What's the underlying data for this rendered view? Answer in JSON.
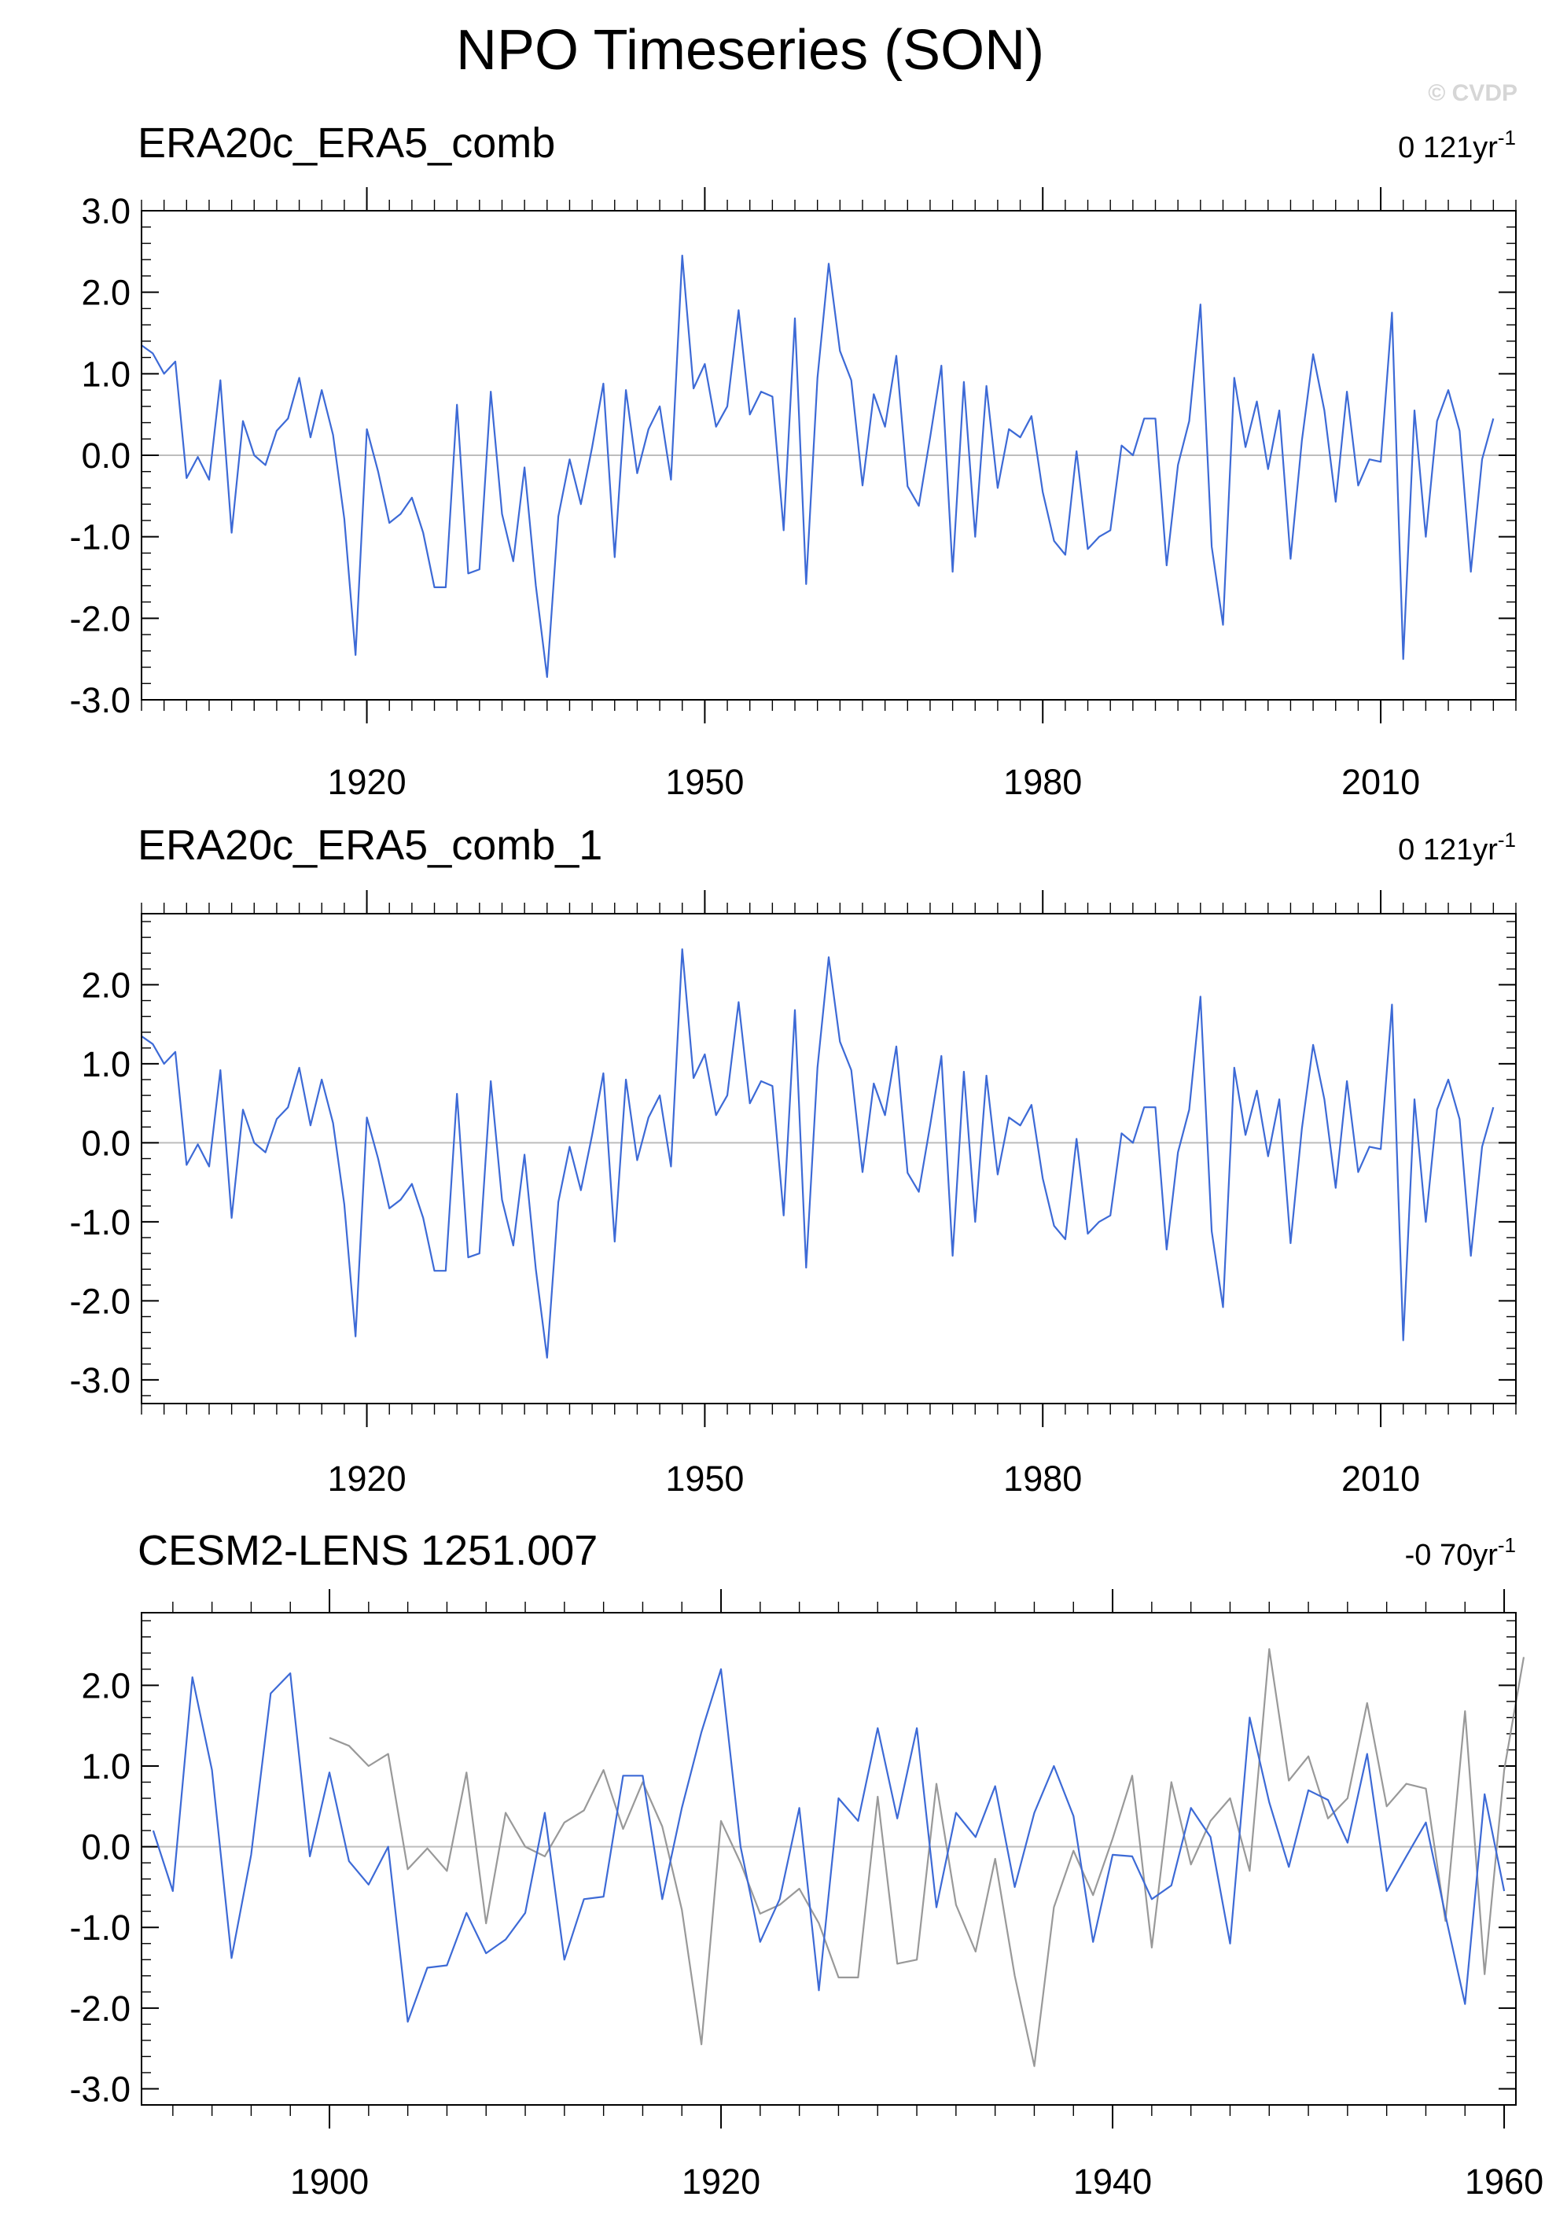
{
  "title": "NPO Timeseries (SON)",
  "credit": "© CVDP",
  "chart_data": [
    {
      "type": "line",
      "title": "ERA20c_ERA5_comb",
      "trend_label": "0 121yr",
      "trend_superscript": "-1",
      "xlim": [
        1900,
        2022
      ],
      "ylim": [
        -3,
        3
      ],
      "x_ticks": [
        1920,
        1950,
        1980,
        2010
      ],
      "y_ticks": [
        "-3.0",
        "-2.0",
        "-1.0",
        "0.0",
        "1.0",
        "2.0",
        "3.0"
      ],
      "series": [
        {
          "color": "#3d6ad6",
          "x_start": 1900,
          "values": [
            1.35,
            1.25,
            1.0,
            1.15,
            -0.28,
            -0.02,
            -0.3,
            0.92,
            -0.95,
            0.42,
            0.0,
            -0.12,
            0.3,
            0.45,
            0.95,
            0.22,
            0.8,
            0.25,
            -0.78,
            -2.45,
            0.32,
            -0.2,
            -0.83,
            -0.72,
            -0.52,
            -0.95,
            -1.62,
            -1.62,
            0.62,
            -1.45,
            -1.4,
            0.78,
            -0.72,
            -1.3,
            -0.15,
            -1.6,
            -2.72,
            -0.75,
            -0.05,
            -0.6,
            0.1,
            0.88,
            -1.25,
            0.8,
            -0.22,
            0.32,
            0.6,
            -0.3,
            2.45,
            0.82,
            1.12,
            0.35,
            0.6,
            1.78,
            0.5,
            0.78,
            0.72,
            -0.92,
            1.68,
            -1.58,
            0.95,
            2.35,
            1.28,
            0.92,
            -0.37,
            0.75,
            0.35,
            1.22,
            -0.38,
            -0.62,
            0.22,
            1.1,
            -1.43,
            0.9,
            -1.0,
            0.85,
            -0.4,
            0.32,
            0.22,
            0.48,
            -0.45,
            -1.05,
            -1.22,
            0.05,
            -1.15,
            -1.0,
            -0.92,
            0.12,
            0.0,
            0.45,
            0.45,
            -1.35,
            -0.12,
            0.42,
            1.85,
            -1.12,
            -2.08,
            0.95,
            0.1,
            0.66,
            -0.17,
            0.55,
            -1.27,
            0.18,
            1.24,
            0.55,
            -0.57,
            0.78,
            -0.37,
            -0.05,
            -0.08,
            1.75,
            -2.5,
            0.55,
            -1.0,
            0.42,
            0.8,
            0.3,
            -1.43,
            -0.05,
            0.45
          ]
        }
      ]
    },
    {
      "type": "line",
      "title": "ERA20c_ERA5_comb_1",
      "trend_label": "0 121yr",
      "trend_superscript": "-1",
      "xlim": [
        1900,
        2022
      ],
      "ylim": [
        -3.3,
        2.9
      ],
      "x_ticks": [
        1920,
        1950,
        1980,
        2010
      ],
      "y_ticks": [
        "-3.0",
        "-2.0",
        "-1.0",
        "0.0",
        "1.0",
        "2.0"
      ],
      "series": [
        {
          "color": "#3d6ad6",
          "x_start": 1900,
          "values": [
            1.35,
            1.25,
            1.0,
            1.15,
            -0.28,
            -0.02,
            -0.3,
            0.92,
            -0.95,
            0.42,
            0.0,
            -0.12,
            0.3,
            0.45,
            0.95,
            0.22,
            0.8,
            0.25,
            -0.78,
            -2.45,
            0.32,
            -0.2,
            -0.83,
            -0.72,
            -0.52,
            -0.95,
            -1.62,
            -1.62,
            0.62,
            -1.45,
            -1.4,
            0.78,
            -0.72,
            -1.3,
            -0.15,
            -1.6,
            -2.72,
            -0.75,
            -0.05,
            -0.6,
            0.1,
            0.88,
            -1.25,
            0.8,
            -0.22,
            0.32,
            0.6,
            -0.3,
            2.45,
            0.82,
            1.12,
            0.35,
            0.6,
            1.78,
            0.5,
            0.78,
            0.72,
            -0.92,
            1.68,
            -1.58,
            0.95,
            2.35,
            1.28,
            0.92,
            -0.37,
            0.75,
            0.35,
            1.22,
            -0.38,
            -0.62,
            0.22,
            1.1,
            -1.43,
            0.9,
            -1.0,
            0.85,
            -0.4,
            0.32,
            0.22,
            0.48,
            -0.45,
            -1.05,
            -1.22,
            0.05,
            -1.15,
            -1.0,
            -0.92,
            0.12,
            0.0,
            0.45,
            0.45,
            -1.35,
            -0.12,
            0.42,
            1.85,
            -1.12,
            -2.08,
            0.95,
            0.1,
            0.66,
            -0.17,
            0.55,
            -1.27,
            0.18,
            1.24,
            0.55,
            -0.57,
            0.78,
            -0.37,
            -0.05,
            -0.08,
            1.75,
            -2.5,
            0.55,
            -1.0,
            0.42,
            0.8,
            0.3,
            -1.43,
            -0.05,
            0.45
          ]
        }
      ]
    },
    {
      "type": "line",
      "title": "CESM2-LENS 1251.007",
      "trend_label": "-0 70yr",
      "trend_superscript": "-1",
      "xlim": [
        1890.4,
        1960.6
      ],
      "ylim": [
        -3.2,
        2.9
      ],
      "x_ticks": [
        1900,
        1920,
        1940,
        1960
      ],
      "y_ticks": [
        "-3.0",
        "-2.0",
        "-1.0",
        "0.0",
        "1.0",
        "2.0"
      ],
      "series": [
        {
          "color": "#999999",
          "x_start": 1900,
          "values": [
            1.35,
            1.25,
            1.0,
            1.15,
            -0.28,
            -0.02,
            -0.3,
            0.92,
            -0.95,
            0.42,
            0.0,
            -0.12,
            0.3,
            0.45,
            0.95,
            0.22,
            0.8,
            0.25,
            -0.78,
            -2.45,
            0.32,
            -0.2,
            -0.83,
            -0.72,
            -0.52,
            -0.95,
            -1.62,
            -1.62,
            0.62,
            -1.45,
            -1.4,
            0.78,
            -0.72,
            -1.3,
            -0.15,
            -1.6,
            -2.72,
            -0.75,
            -0.05,
            -0.6,
            0.1,
            0.88,
            -1.25,
            0.8,
            -0.22,
            0.32,
            0.6,
            -0.3,
            2.45,
            0.82,
            1.12,
            0.35,
            0.6,
            1.78,
            0.5,
            0.78,
            0.72,
            -0.92,
            1.68,
            -1.58,
            0.95,
            2.35
          ]
        },
        {
          "color": "#3d6ad6",
          "x_start": 1891,
          "values": [
            0.2,
            -0.55,
            2.1,
            0.95,
            -1.38,
            -0.1,
            1.9,
            2.15,
            -0.12,
            0.92,
            -0.18,
            -0.47,
            0.0,
            -2.17,
            -1.5,
            -1.47,
            -0.82,
            -1.32,
            -1.15,
            -0.82,
            0.42,
            -1.4,
            -0.65,
            -0.62,
            0.88,
            0.88,
            -0.65,
            0.48,
            1.42,
            2.2,
            0.0,
            -1.18,
            -0.65,
            0.48,
            -1.78,
            0.6,
            0.32,
            1.47,
            0.35,
            1.47,
            -0.75,
            0.42,
            0.12,
            0.75,
            -0.5,
            0.42,
            1.0,
            0.38,
            -1.18,
            -0.1,
            -0.12,
            -0.65,
            -0.48,
            0.48,
            0.12,
            -1.2,
            1.6,
            0.55,
            -0.25,
            0.7,
            0.58,
            0.05,
            1.15,
            -0.55,
            -0.12,
            0.3,
            -0.85,
            -1.95,
            0.65,
            -0.55
          ]
        }
      ]
    }
  ]
}
